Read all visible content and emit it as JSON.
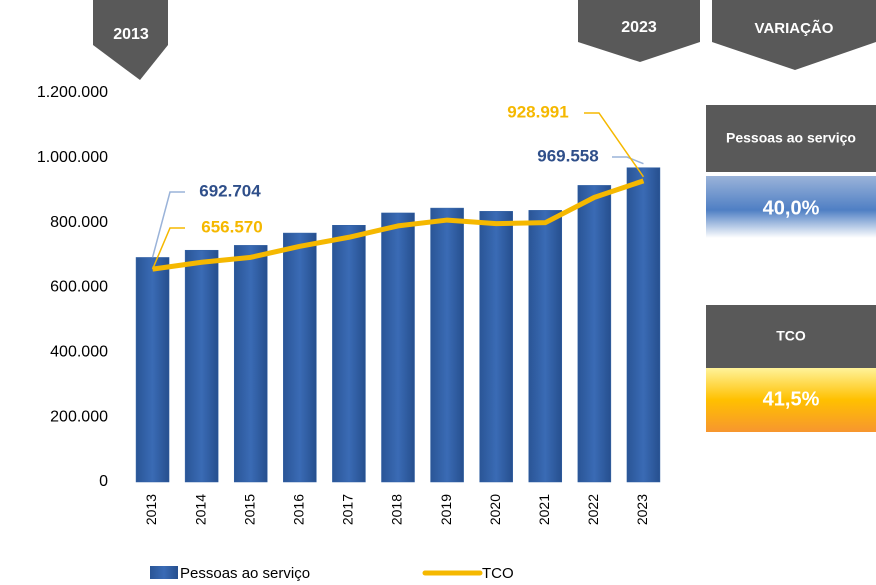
{
  "chart_data": {
    "type": "bar",
    "categories": [
      "2013",
      "2014",
      "2015",
      "2016",
      "2017",
      "2018",
      "2019",
      "2020",
      "2021",
      "2022",
      "2023"
    ],
    "series": [
      {
        "name": "Pessoas ao serviço",
        "type": "bar",
        "color": "#2e5fa3",
        "values": [
          692704,
          715000,
          730000,
          768000,
          792000,
          830000,
          845000,
          835000,
          838000,
          915000,
          969558
        ],
        "value_labels": [
          "692.704",
          null,
          null,
          null,
          null,
          null,
          null,
          null,
          null,
          null,
          "969.558"
        ]
      },
      {
        "name": "TCO",
        "type": "line",
        "color": "#f5b800",
        "values": [
          656570,
          678000,
          693000,
          727000,
          755000,
          790000,
          808000,
          797000,
          800000,
          878000,
          928991
        ],
        "value_labels": [
          "656.570",
          null,
          null,
          null,
          null,
          null,
          null,
          null,
          null,
          null,
          "928.991"
        ]
      }
    ],
    "ylim": [
      0,
      1200000
    ],
    "yticks": [
      0,
      {
        "value": 200000,
        "label": "200.000"
      },
      {
        "value": 400000,
        "label": "400.000"
      },
      {
        "value": 600000,
        "label": "600.000"
      },
      {
        "value": 800000,
        "label": "800.000"
      },
      {
        "value": 1000000,
        "label": "1.000.000"
      },
      {
        "value": 1200000,
        "label": "1.200.000"
      }
    ],
    "grid": false,
    "legend": "bottom",
    "banners": {
      "start": "2013",
      "end": "2023",
      "variation": "VARIAÇÃO"
    },
    "panels": [
      {
        "label": "Pessoas ao serviço",
        "value": "40,0%"
      },
      {
        "label": "TCO",
        "value": "41,5%"
      }
    ]
  }
}
